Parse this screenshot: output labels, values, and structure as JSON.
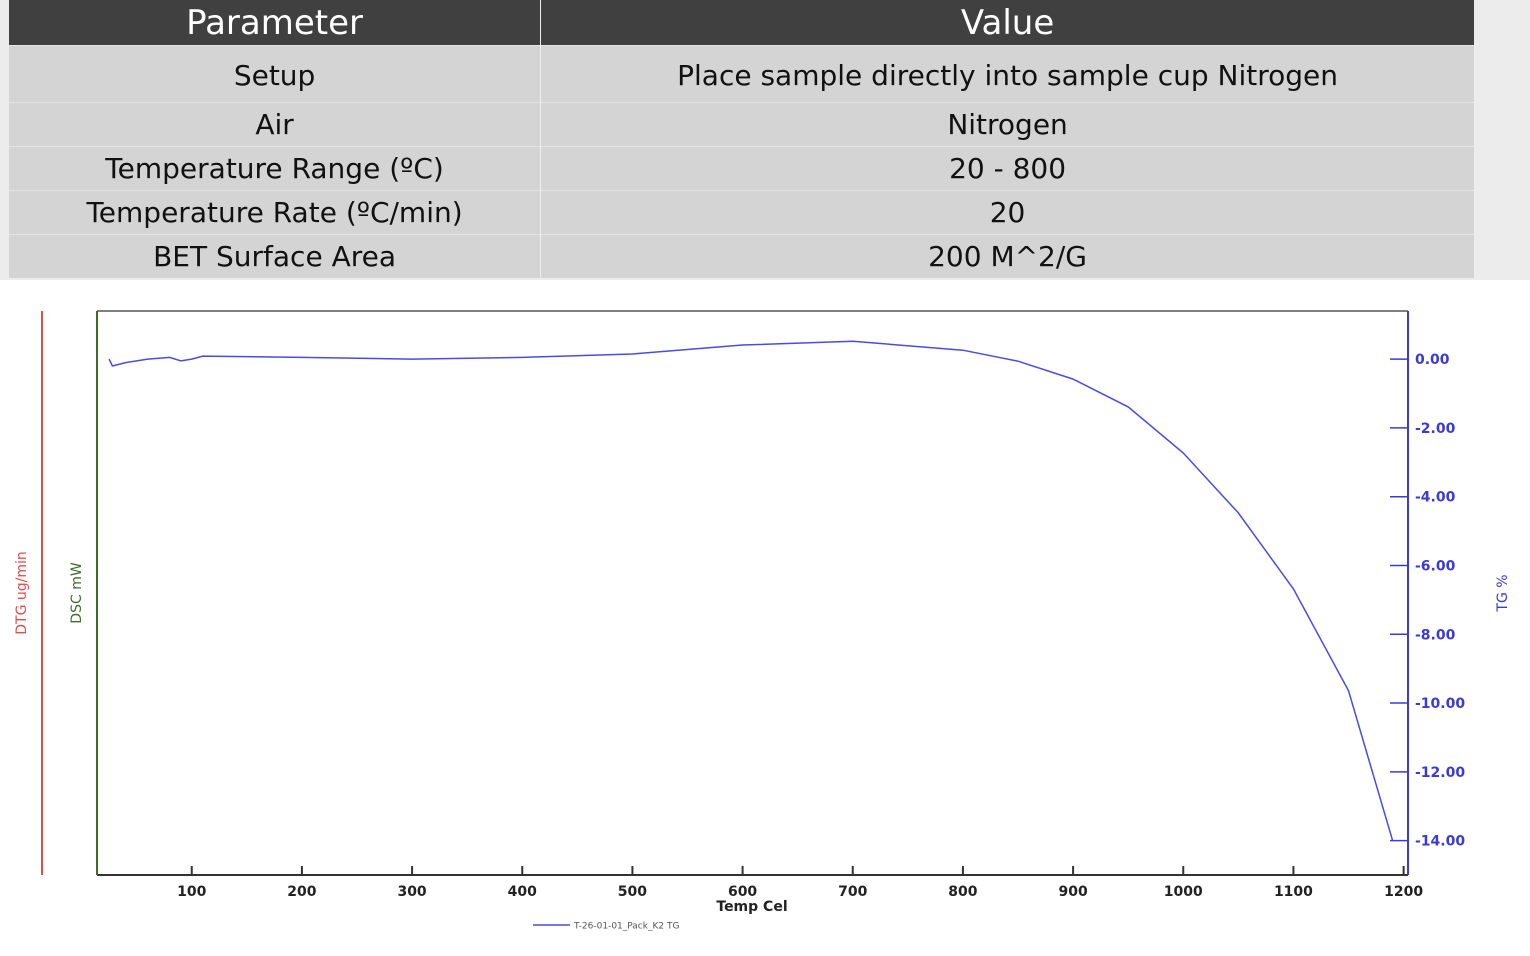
{
  "table": {
    "header": [
      "Parameter",
      "Value"
    ],
    "rows": [
      [
        "Setup",
        "Place sample directly into sample cup Nitrogen"
      ],
      [
        "Air",
        "Nitrogen"
      ],
      [
        "Temperature Range (ºC)",
        "20 - 800"
      ],
      [
        "Temperature Rate (ºC/min)",
        "20"
      ],
      [
        "BET Surface Area",
        "200 M^2/G"
      ]
    ]
  },
  "chart_data": {
    "type": "line",
    "x_label": "Temp Cel",
    "y_label": "TG %",
    "y_color": "#3a3ad8",
    "extra_axes": [
      {
        "label": "DTG ug/min",
        "color": "#e84a4a"
      },
      {
        "label": "DSC mW",
        "color": "#3f6b2a"
      }
    ],
    "x": [
      25,
      28,
      40,
      60,
      80,
      90,
      100,
      110,
      200,
      300,
      400,
      500,
      600,
      700,
      800,
      850,
      900,
      950,
      1000,
      1050,
      1100,
      1150,
      1190
    ],
    "series": [
      {
        "name": "T-26-01-01_Pack_K2  TG",
        "color": "#4a4ae8",
        "values": [
          0.0,
          -0.2,
          -0.1,
          0.0,
          0.05,
          -0.05,
          0.0,
          0.09,
          0.05,
          0.0,
          0.05,
          0.15,
          0.41,
          0.52,
          0.26,
          -0.06,
          -0.58,
          -1.39,
          -2.73,
          -4.47,
          -6.68,
          -9.64,
          -14.0
        ]
      }
    ],
    "xlim": [
      14,
      1204
    ],
    "ylim": [
      -15.0,
      1.4
    ],
    "xticks": [
      100,
      200,
      300,
      400,
      500,
      600,
      700,
      800,
      900,
      1000,
      1100,
      1200
    ],
    "yticks": [
      {
        "value": 0,
        "label": "0.00"
      },
      {
        "value": -2,
        "label": "-2.00"
      },
      {
        "value": -4,
        "label": "-4.00"
      },
      {
        "value": -6,
        "label": "-6.00"
      },
      {
        "value": -8,
        "label": "-8.00"
      },
      {
        "value": -10,
        "label": "-10.00"
      },
      {
        "value": -12,
        "label": "-12.00"
      },
      {
        "value": -14,
        "label": "-14.00"
      }
    ]
  }
}
